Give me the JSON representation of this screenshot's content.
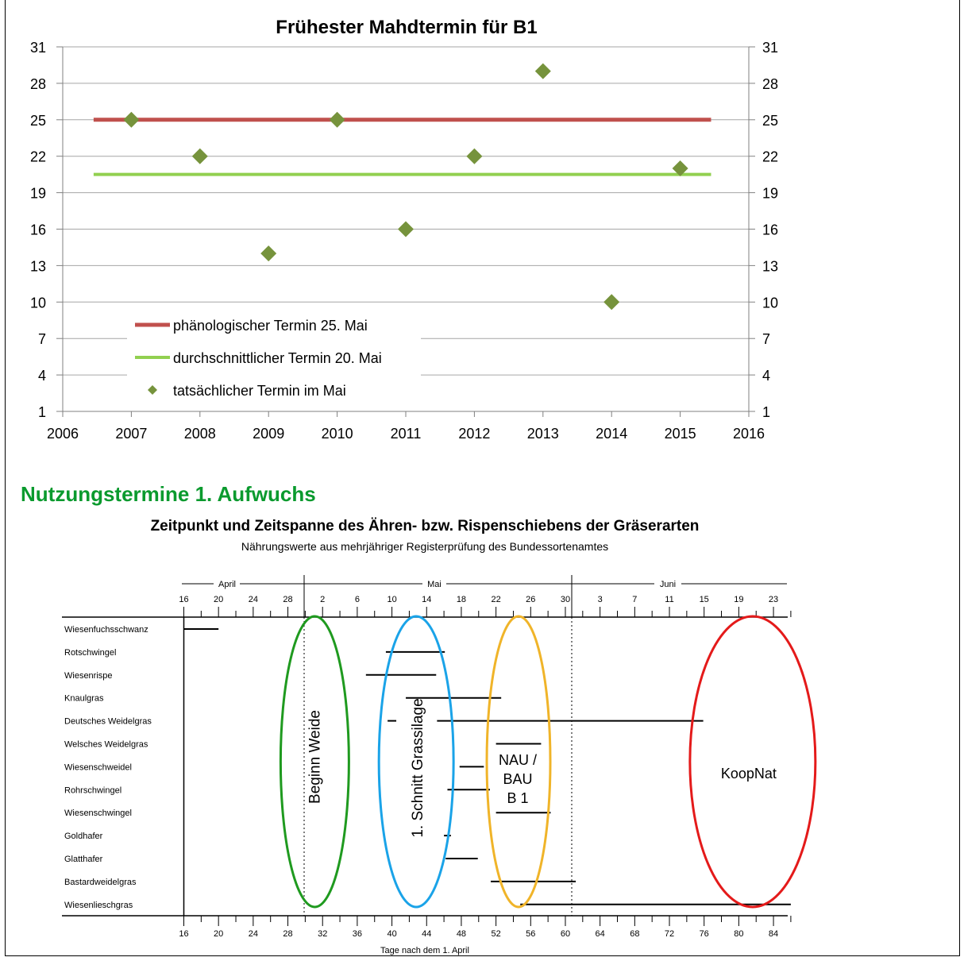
{
  "colors": {
    "phaeno": "#c0504d",
    "avg": "#92d050",
    "actual": "#76933c",
    "section": "#0a9a2e",
    "ell_weide": "#1f9a1f",
    "ell_silage": "#1aa3e8",
    "ell_nau": "#f0b429",
    "ell_koop": "#e41a1a"
  },
  "chart_data": [
    {
      "type": "scatter",
      "title": "Frühester Mahdtermin für B1",
      "xlabel": "",
      "ylabel": "",
      "xlim": [
        2006,
        2016
      ],
      "ylim": [
        1,
        31
      ],
      "xticks": [
        "2006",
        "2007",
        "2008",
        "2009",
        "2010",
        "2011",
        "2012",
        "2013",
        "2014",
        "2015",
        "2016"
      ],
      "yticks": [
        "1",
        "4",
        "7",
        "10",
        "13",
        "16",
        "19",
        "22",
        "25",
        "28",
        "31"
      ],
      "grid": true,
      "legend_position": "bottom-left",
      "series": [
        {
          "name": "phänologischer Termin 25. Mai",
          "kind": "line",
          "x": [
            2006.45,
            2015.45
          ],
          "y": [
            25,
            25
          ]
        },
        {
          "name": "durchschnittlicher Termin 20. Mai",
          "kind": "line",
          "x": [
            2006.45,
            2015.45
          ],
          "y": [
            20.5,
            20.5
          ]
        },
        {
          "name": "tatsächlicher Termin im Mai",
          "kind": "scatter",
          "x": [
            2007,
            2008,
            2009,
            2010,
            2011,
            2012,
            2013,
            2014,
            2015
          ],
          "y": [
            25,
            22,
            14,
            25,
            16,
            22,
            29,
            10,
            21
          ]
        }
      ]
    },
    {
      "type": "gantt",
      "title": "Zeitpunkt und Zeitspanne des Ähren- bzw. Rispenschiebens der Gräserarten",
      "subtitle": "Nährungswerte aus mehrjähriger Registerprüfung des Bundessortenamtes",
      "xlabel": "Tage nach dem 1. April",
      "xlim": [
        16,
        86
      ],
      "months": [
        "April",
        "Mai",
        "Juni"
      ],
      "top_ticks": [
        "16",
        "20",
        "24",
        "28",
        "2",
        "6",
        "10",
        "14",
        "18",
        "22",
        "26",
        "30",
        "3",
        "7",
        "11",
        "15",
        "19",
        "23"
      ],
      "bottom_ticks": [
        "16",
        "20",
        "24",
        "28",
        "32",
        "36",
        "40",
        "44",
        "48",
        "52",
        "56",
        "60",
        "64",
        "68",
        "72",
        "76",
        "80",
        "84"
      ],
      "species": [
        {
          "name": "Wiesenfuchsschwanz",
          "ranges": [
            [
              16,
              20
            ]
          ]
        },
        {
          "name": "Rotschwingel",
          "ranges": [
            [
              39.3,
              46.1
            ]
          ]
        },
        {
          "name": "Wiesenrispe",
          "ranges": [
            [
              37.0,
              45.1
            ]
          ]
        },
        {
          "name": "Knaulgras",
          "ranges": [
            [
              41.6,
              52.6
            ]
          ]
        },
        {
          "name": "Deutsches Weidelgras",
          "ranges": [
            [
              39.5,
              40.5
            ],
            [
              45.2,
              75.9
            ]
          ]
        },
        {
          "name": "Welsches Weidelgras",
          "ranges": [
            [
              52.0,
              57.2
            ]
          ]
        },
        {
          "name": "Wiesenschweidel",
          "ranges": [
            [
              47.8,
              50.6
            ]
          ]
        },
        {
          "name": "Rohrschwingel",
          "ranges": [
            [
              46.4,
              51.3
            ]
          ]
        },
        {
          "name": "Wiesenschwingel",
          "ranges": [
            [
              52.0,
              58.3
            ]
          ]
        },
        {
          "name": "Goldhafer",
          "ranges": [
            [
              46.0,
              46.8
            ]
          ]
        },
        {
          "name": "Glatthafer",
          "ranges": [
            [
              46.2,
              49.9
            ]
          ]
        },
        {
          "name": "Bastardweidelgras",
          "ranges": [
            [
              51.4,
              61.2
            ]
          ]
        },
        {
          "name": "Wiesenlieschgras",
          "ranges": [
            [
              54.8,
              86.0
            ]
          ]
        }
      ],
      "annotations": [
        {
          "label": "Beginn Weide",
          "center": 31.1
        },
        {
          "label": "1. Schnitt Grassilage",
          "center": 42.8
        },
        {
          "label_lines": [
            "NAU /",
            "BAU",
            "B 1"
          ],
          "center": 54.6
        },
        {
          "label": "KoopNat",
          "center": 81.6
        }
      ]
    }
  ]
}
